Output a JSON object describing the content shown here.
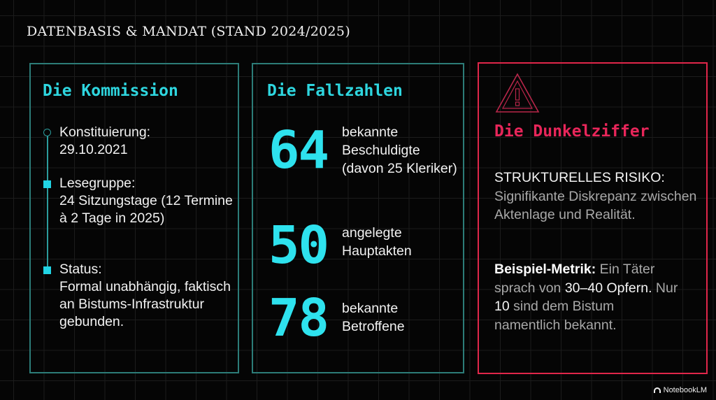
{
  "title": "DATENBASIS & MANDAT (STAND 2024/2025)",
  "kommission": {
    "heading": "Die Kommission",
    "items": [
      {
        "label": "Konstituierung:",
        "text": "29.10.2021"
      },
      {
        "label": "Lesegruppe:",
        "text": "24 Sitzungstage (12 Termine à 2 Tage in 2025)"
      },
      {
        "label": "Status:",
        "text": "Formal unabhängig, faktisch an Bistums-Infrastruktur gebunden."
      }
    ]
  },
  "fallzahlen": {
    "heading": "Die Fallzahlen",
    "stats": [
      {
        "value": "64",
        "label": "bekannte Beschuldigte (davon 25 Kleriker)"
      },
      {
        "value": "50",
        "label": "angelegte Hauptakten"
      },
      {
        "value": "78",
        "label": "bekannte Betroffene"
      }
    ]
  },
  "dunkelziffer": {
    "heading": "Die Dunkelziffer",
    "icon": "warning-triangle-icon",
    "risk_label": "STRUKTURELLES RISIKO:",
    "risk_text": "Signifikante Diskrepanz zwischen Aktenlage und Realität.",
    "metric_label": "Beispiel-Metrik:",
    "metric_t1": "Ein Täter sprach von",
    "metric_h1": "30–40 Opfern.",
    "metric_t2": "Nur",
    "metric_h2": "10",
    "metric_t3": "sind dem Bistum namentlich bekannt."
  },
  "brand": "NotebookLM",
  "colors": {
    "accent": "#2ed6df",
    "alert": "#e0264a",
    "background": "#050505"
  }
}
